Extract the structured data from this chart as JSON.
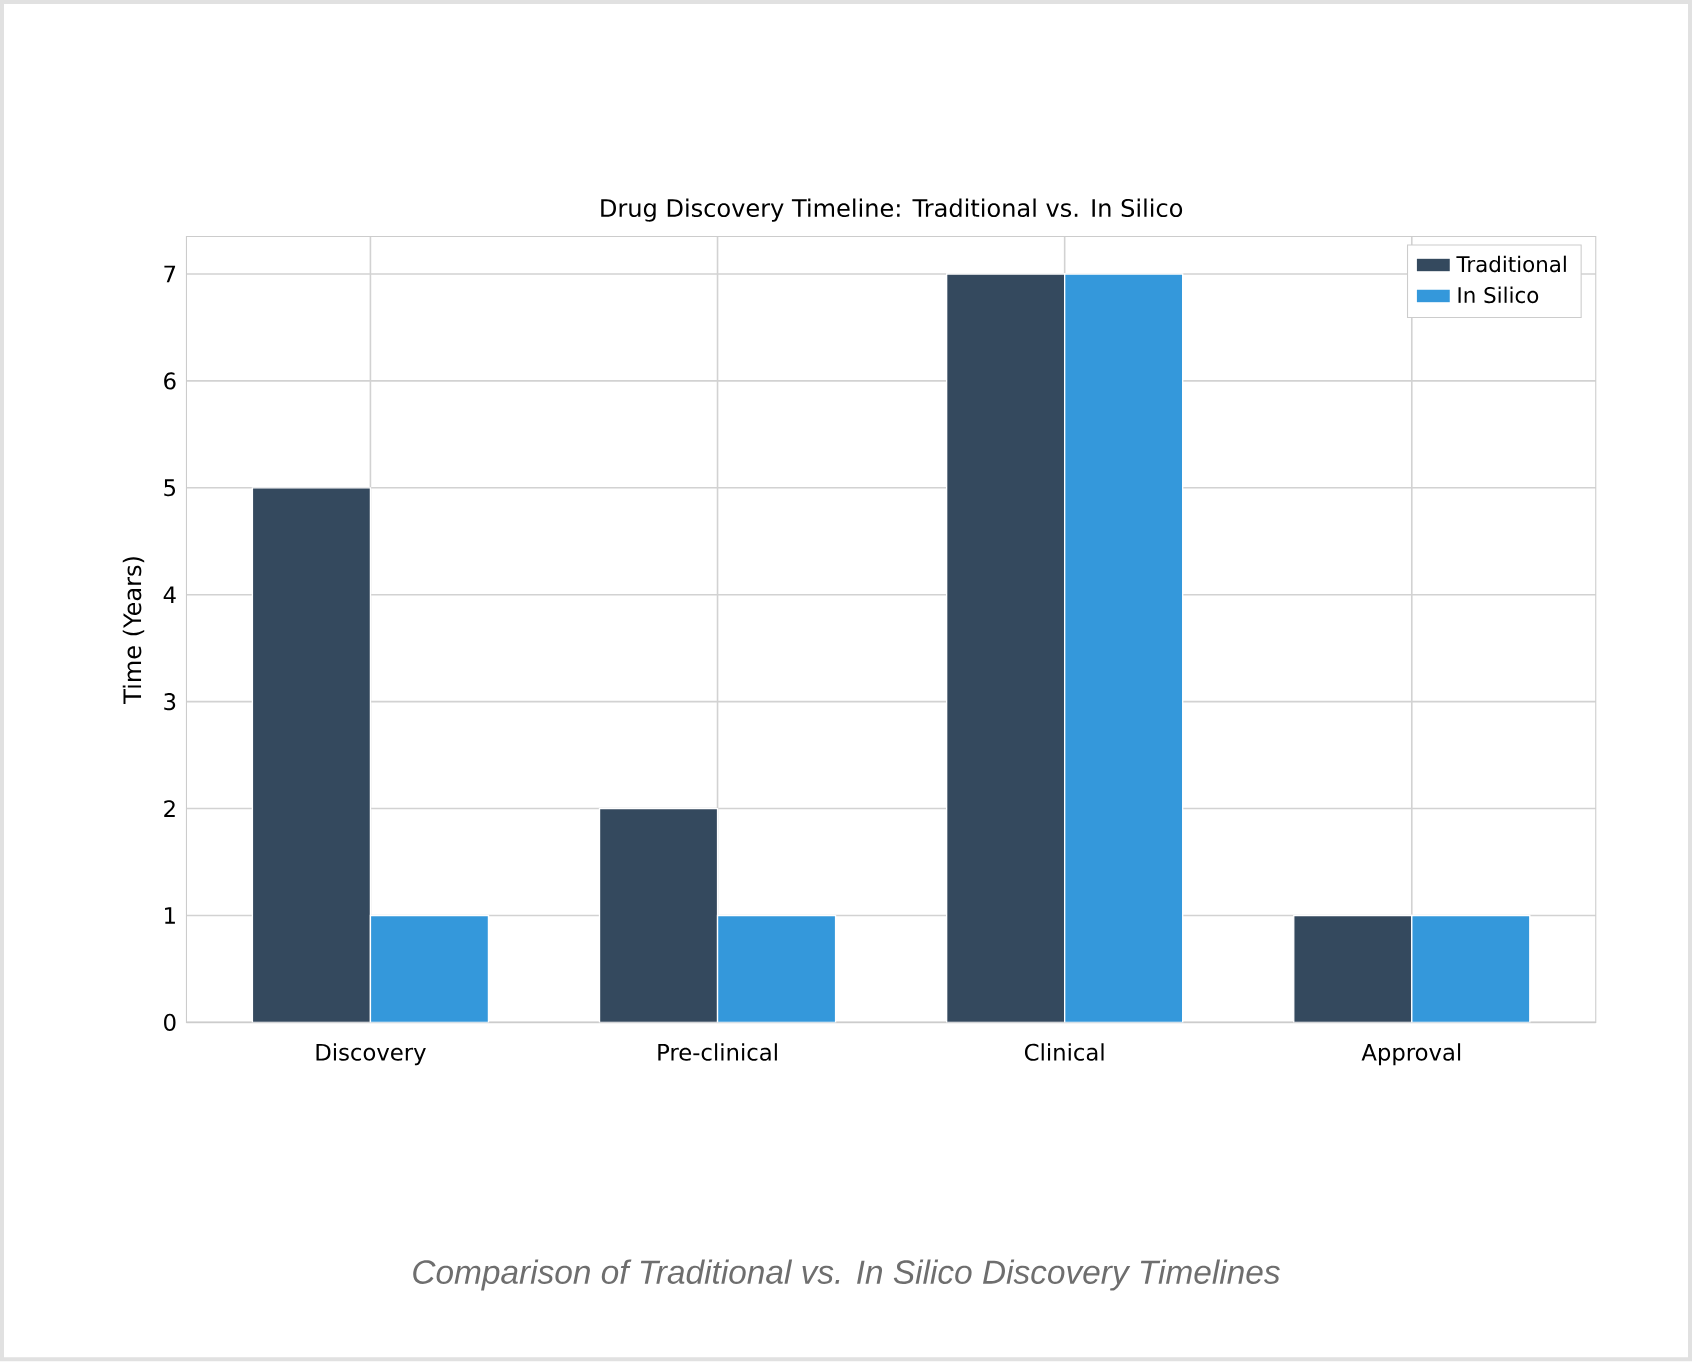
{
  "chart_data": {
    "type": "bar",
    "title": "Drug Discovery Timeline: Traditional vs. In Silico",
    "ylabel": "Time (Years)",
    "categories": [
      "Discovery",
      "Pre-clinical",
      "Clinical",
      "Approval"
    ],
    "series": [
      {
        "name": "Traditional",
        "color": "#34495e",
        "values": [
          5,
          2,
          7,
          1
        ]
      },
      {
        "name": "In Silico",
        "color": "#3498db",
        "values": [
          1,
          1,
          7,
          1
        ]
      }
    ],
    "ylim": [
      0,
      7.35
    ],
    "yticks": [
      0,
      1,
      2,
      3,
      4,
      5,
      6,
      7
    ],
    "grid": true,
    "legend": "top right",
    "annotations": [
      "Comparison of Traditional vs. In Silico Discovery Timelines"
    ]
  }
}
